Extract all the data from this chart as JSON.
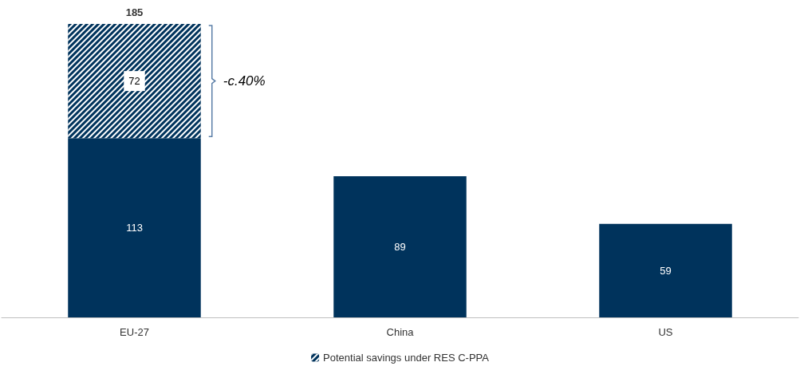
{
  "chart_data": {
    "type": "bar",
    "stacked": true,
    "categories": [
      "EU-27",
      "China",
      "US"
    ],
    "series": [
      {
        "color": "#00335c",
        "values": [
          113,
          89,
          59
        ]
      },
      {
        "name": "Potential savings under RES C-PPA",
        "color": "#00335c",
        "values": [
          72,
          null,
          null
        ]
      }
    ],
    "totals": [
      "185",
      null,
      null
    ],
    "annotations": [
      "-c.40%"
    ],
    "data_labels": true,
    "legend": "bottom"
  }
}
